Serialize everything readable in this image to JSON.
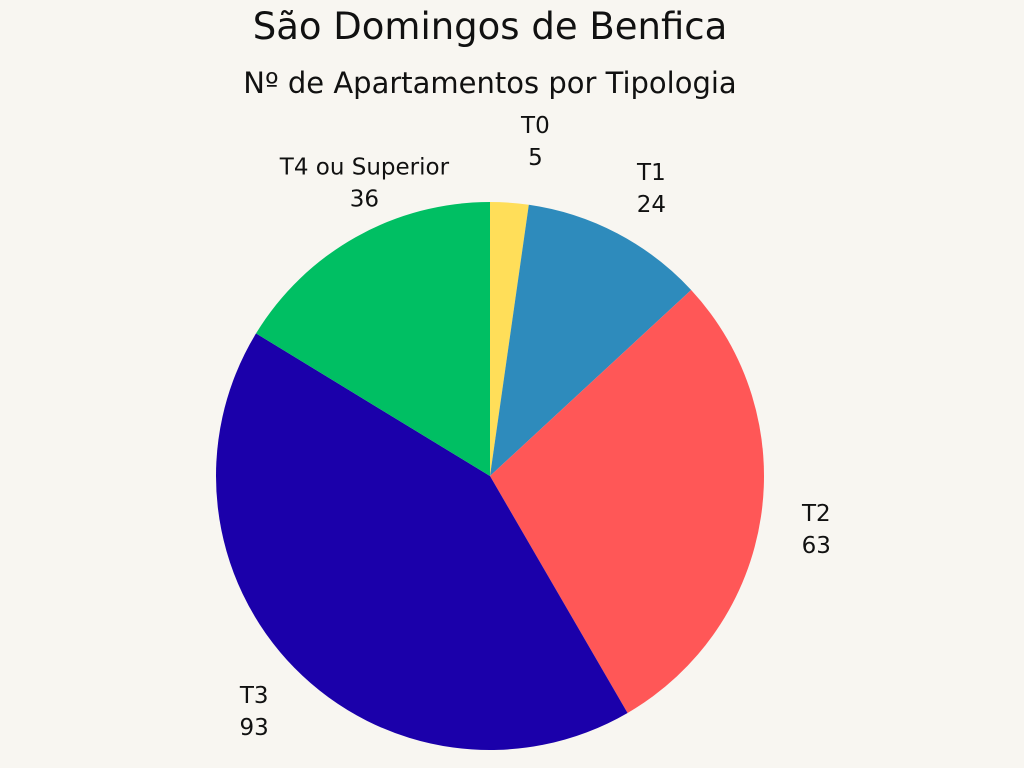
{
  "chart_data": {
    "type": "pie",
    "title": "São Domingos de Benfica",
    "subtitle": "Nº de Apartamentos por Tipologia",
    "categories": [
      "T0",
      "T1",
      "T2",
      "T3",
      "T4 ou Superior"
    ],
    "values": [
      5,
      24,
      63,
      93,
      36
    ],
    "colors": [
      "#ffde59",
      "#2e8bbc",
      "#ff5757",
      "#1b00aa",
      "#00bf63"
    ],
    "start_angle": "top, clockwise",
    "legend": "none",
    "data_labels": "category and value outside slices"
  }
}
